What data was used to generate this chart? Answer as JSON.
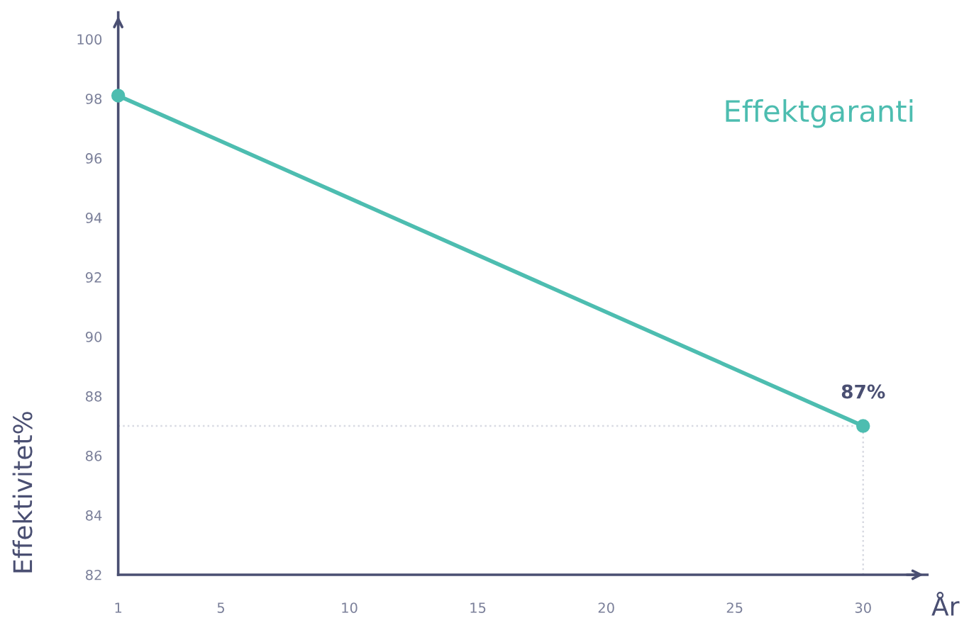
{
  "chart_data": {
    "type": "line",
    "xlabel": "År",
    "ylabel": "Effektivitet%",
    "x": [
      1,
      30
    ],
    "series": [
      {
        "name": "Effektgaranti",
        "color": "#4dbdb0",
        "values": [
          98.1,
          87
        ],
        "value_labels": [
          null,
          "87%"
        ]
      }
    ],
    "xlim": [
      1,
      32.5
    ],
    "ylim": [
      82,
      100.9
    ],
    "xticks": [
      1,
      5,
      10,
      15,
      20,
      25,
      30
    ],
    "yticks": [
      82,
      84,
      86,
      88,
      90,
      92,
      94,
      96,
      98,
      100
    ],
    "ref_lines": [
      {
        "axis": "y",
        "value": 87,
        "color": "#d8dae2",
        "line_style": "dotted"
      },
      {
        "axis": "x",
        "value": 30,
        "color": "#d8dae2",
        "line_style": "dotted"
      }
    ],
    "grid": false,
    "legend": false,
    "marker": "circle",
    "line_style": "solid"
  }
}
